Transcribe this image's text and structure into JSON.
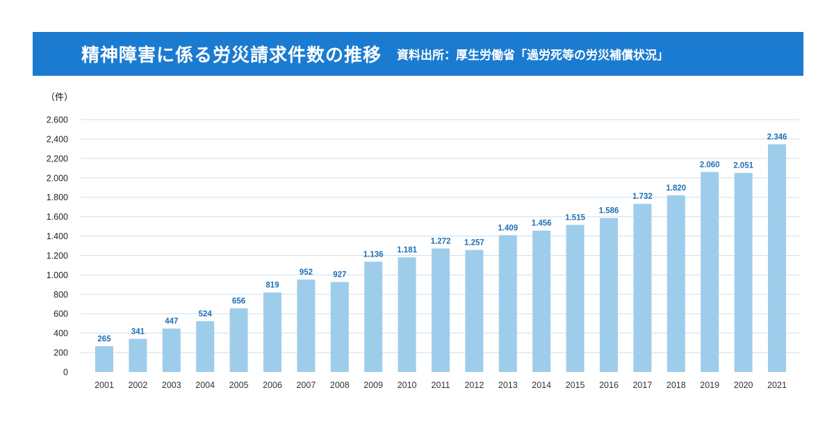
{
  "header": {
    "title": "精神障害に係る労災請求件数の推移",
    "source": "資料出所：厚生労働省「過労死等の労災補償状況」"
  },
  "colors": {
    "banner": "#1b7bd0",
    "bar": "#9dcdeb",
    "data_label": "#1f6fb5",
    "gridline": "#c8e0f2"
  },
  "chart_data": {
    "type": "bar",
    "unit_label": "（件）",
    "categories": [
      "2001",
      "2002",
      "2003",
      "2004",
      "2005",
      "2006",
      "2007",
      "2008",
      "2009",
      "2010",
      "2011",
      "2012",
      "2013",
      "2014",
      "2015",
      "2016",
      "2017",
      "2018",
      "2019",
      "2020",
      "2021"
    ],
    "values": [
      265,
      341,
      447,
      524,
      656,
      819,
      952,
      927,
      1136,
      1181,
      1272,
      1257,
      1409,
      1456,
      1515,
      1586,
      1732,
      1820,
      2060,
      2051,
      2346
    ],
    "data_labels": [
      "265",
      "341",
      "447",
      "524",
      "656",
      "819",
      "952",
      "927",
      "1.136",
      "1.181",
      "1.272",
      "1.257",
      "1.409",
      "1.456",
      "1.515",
      "1.586",
      "1.732",
      "1.820",
      "2.060",
      "2.051",
      "2.346"
    ],
    "y_ticks": [
      0,
      200,
      400,
      600,
      800,
      1000,
      1200,
      1400,
      1600,
      1800,
      2000,
      2200,
      2400,
      2600
    ],
    "y_tick_labels": [
      "0",
      "200",
      "400",
      "600",
      "800",
      "1.000",
      "1.200",
      "1.400",
      "1.600",
      "1.800",
      "2.000",
      "2,200",
      "2,400",
      "2.600"
    ],
    "ylim": [
      0,
      2600
    ],
    "grid": true,
    "legend": "none"
  }
}
